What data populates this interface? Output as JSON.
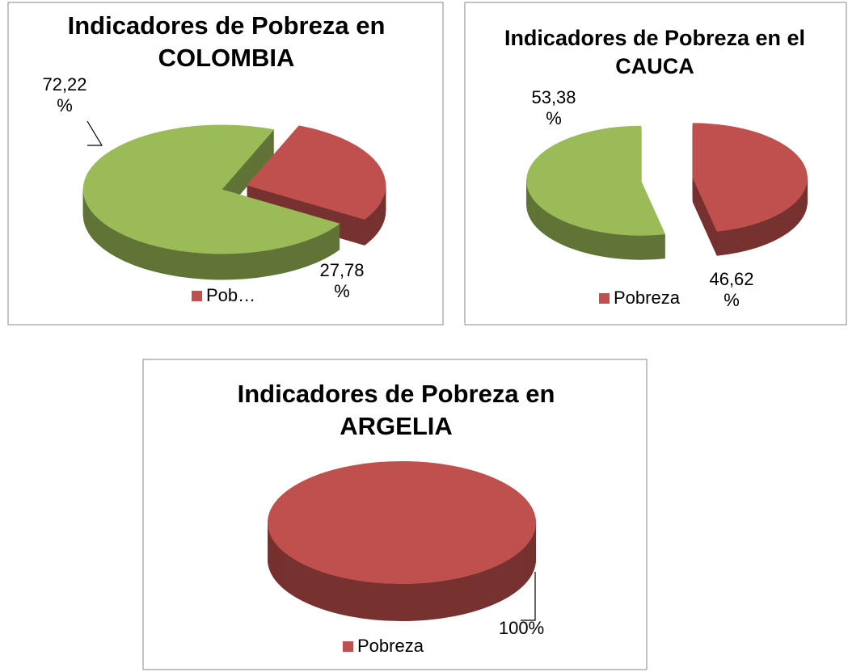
{
  "chart_data": [
    {
      "type": "pie",
      "title": "Indicadores de Pobreza en COLOMBIA",
      "categories": [
        "Pobreza",
        null
      ],
      "values": [
        27.78,
        72.22
      ],
      "value_labels": [
        "27,78 %",
        "72,22 %"
      ],
      "colors": [
        "#c0504d",
        "#9bbb59"
      ]
    },
    {
      "type": "pie",
      "title": "Indicadores de Pobreza en el CAUCA",
      "categories": [
        "Pobreza",
        null
      ],
      "values": [
        46.62,
        53.38
      ],
      "value_labels": [
        "46,62 %",
        "53,38 %"
      ],
      "colors": [
        "#c0504d",
        "#9bbb59"
      ]
    },
    {
      "type": "pie",
      "title": "Indicadores de Pobreza en ARGELIA",
      "categories": [
        "Pobreza"
      ],
      "values": [
        100
      ],
      "value_labels": [
        "100%"
      ],
      "colors": [
        "#c0504d"
      ]
    }
  ]
}
